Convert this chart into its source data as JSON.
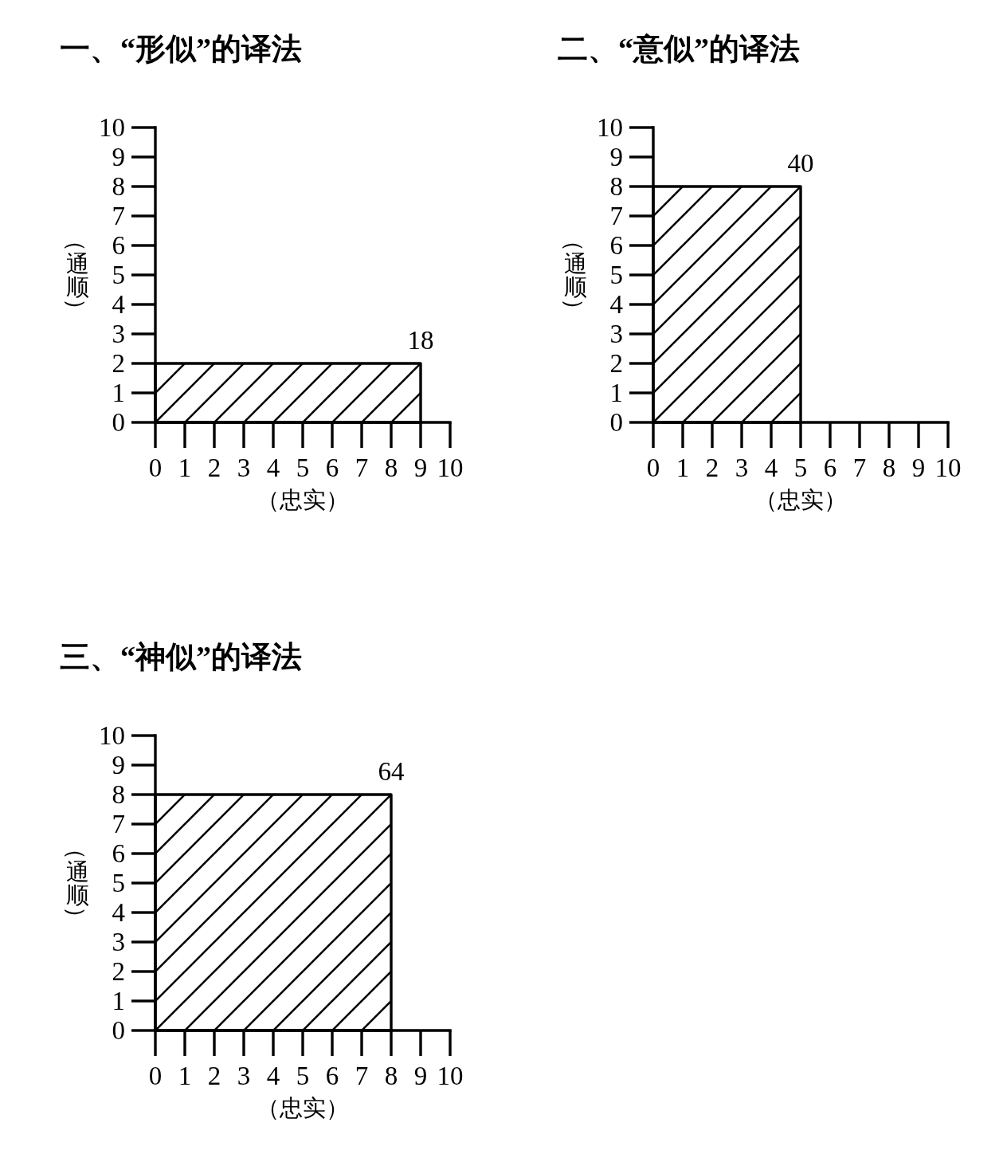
{
  "chart_data": [
    {
      "type": "area",
      "title": "一、“形似”的译法",
      "xlabel": "（忠实）",
      "ylabel": "（通顺）",
      "x": [
        0,
        9
      ],
      "values": [
        2,
        2
      ],
      "color": "#000000",
      "xlim": [
        0,
        10
      ],
      "ylim": [
        0,
        10
      ],
      "xticks": [
        0,
        1,
        2,
        3,
        4,
        5,
        6,
        7,
        8,
        9,
        10
      ],
      "yticks": [
        0,
        1,
        2,
        3,
        4,
        5,
        6,
        7,
        8,
        9,
        10
      ],
      "annotations": [
        {
          "text": "18",
          "x": 9,
          "y": 2
        }
      ]
    },
    {
      "type": "area",
      "title": "二、“意似”的译法",
      "xlabel": "（忠实）",
      "ylabel": "（通顺）",
      "x": [
        0,
        5
      ],
      "values": [
        8,
        8
      ],
      "color": "#000000",
      "xlim": [
        0,
        10
      ],
      "ylim": [
        0,
        10
      ],
      "xticks": [
        0,
        1,
        2,
        3,
        4,
        5,
        6,
        7,
        8,
        9,
        10
      ],
      "yticks": [
        0,
        1,
        2,
        3,
        4,
        5,
        6,
        7,
        8,
        9,
        10
      ],
      "annotations": [
        {
          "text": "40",
          "x": 5,
          "y": 8
        }
      ]
    },
    {
      "type": "area",
      "title": "三、“神似”的译法",
      "xlabel": "（忠实）",
      "ylabel": "（通顺）",
      "x": [
        0,
        8
      ],
      "values": [
        8,
        8
      ],
      "color": "#000000",
      "xlim": [
        0,
        10
      ],
      "ylim": [
        0,
        10
      ],
      "xticks": [
        0,
        1,
        2,
        3,
        4,
        5,
        6,
        7,
        8,
        9,
        10
      ],
      "yticks": [
        0,
        1,
        2,
        3,
        4,
        5,
        6,
        7,
        8,
        9,
        10
      ],
      "annotations": [
        {
          "text": "64",
          "x": 8,
          "y": 8
        }
      ]
    }
  ]
}
